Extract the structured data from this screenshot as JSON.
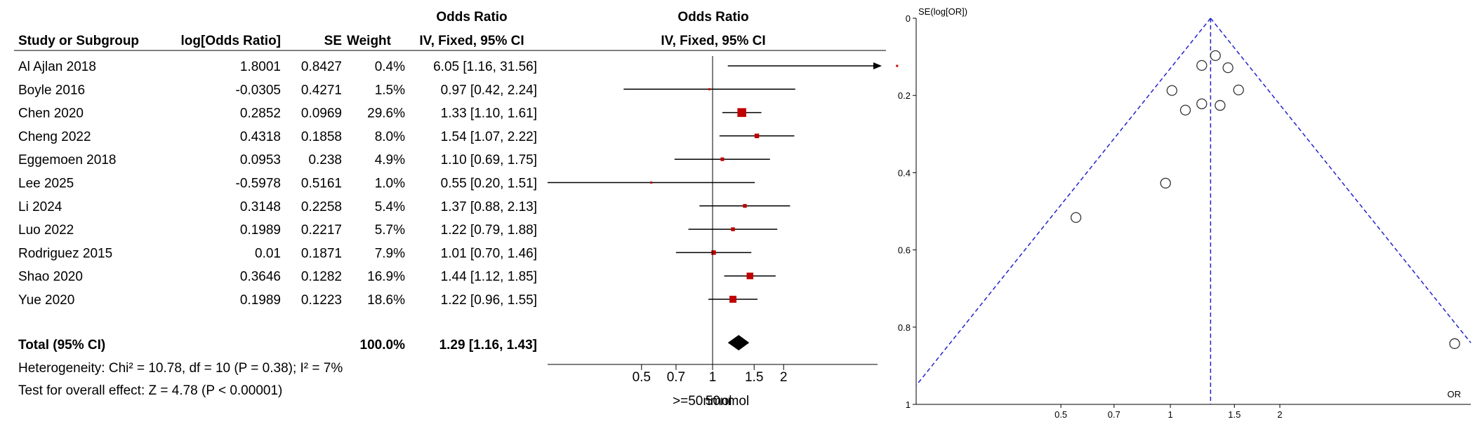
{
  "chart_data": [
    {
      "type": "forest",
      "title": "Odds Ratio",
      "headers": {
        "study": "Study or Subgroup",
        "logor": "log[Odds Ratio]",
        "se": "SE",
        "weight": "Weight",
        "or_title": "Odds Ratio",
        "or_sub": "IV, Fixed, 95% CI",
        "plot_title": "Odds Ratio",
        "plot_sub": "IV, Fixed, 95% CI"
      },
      "studies": [
        {
          "name": "Al Ajlan 2018",
          "logor": "1.8001",
          "se": "0.8427",
          "weight": "0.4%",
          "ci_text": "6.05 [1.16, 31.56]",
          "or": 6.05,
          "lo": 1.16,
          "hi": 31.56,
          "w": 0.4
        },
        {
          "name": "Boyle 2016",
          "logor": "-0.0305",
          "se": "0.4271",
          "weight": "1.5%",
          "ci_text": "0.97 [0.42, 2.24]",
          "or": 0.97,
          "lo": 0.42,
          "hi": 2.24,
          "w": 1.5
        },
        {
          "name": "Chen 2020",
          "logor": "0.2852",
          "se": "0.0969",
          "weight": "29.6%",
          "ci_text": "1.33 [1.10, 1.61]",
          "or": 1.33,
          "lo": 1.1,
          "hi": 1.61,
          "w": 29.6
        },
        {
          "name": "Cheng 2022",
          "logor": "0.4318",
          "se": "0.1858",
          "weight": "8.0%",
          "ci_text": "1.54 [1.07, 2.22]",
          "or": 1.54,
          "lo": 1.07,
          "hi": 2.22,
          "w": 8.0
        },
        {
          "name": "Eggemoen 2018",
          "logor": "0.0953",
          "se": "0.238",
          "weight": "4.9%",
          "ci_text": "1.10 [0.69, 1.75]",
          "or": 1.1,
          "lo": 0.69,
          "hi": 1.75,
          "w": 4.9
        },
        {
          "name": "Lee 2025",
          "logor": "-0.5978",
          "se": "0.5161",
          "weight": "1.0%",
          "ci_text": "0.55 [0.20, 1.51]",
          "or": 0.55,
          "lo": 0.2,
          "hi": 1.51,
          "w": 1.0
        },
        {
          "name": "Li 2024",
          "logor": "0.3148",
          "se": "0.2258",
          "weight": "5.4%",
          "ci_text": "1.37 [0.88, 2.13]",
          "or": 1.37,
          "lo": 0.88,
          "hi": 2.13,
          "w": 5.4
        },
        {
          "name": "Luo 2022",
          "logor": "0.1989",
          "se": "0.2217",
          "weight": "5.7%",
          "ci_text": "1.22 [0.79, 1.88]",
          "or": 1.22,
          "lo": 0.79,
          "hi": 1.88,
          "w": 5.7
        },
        {
          "name": "Rodriguez 2015",
          "logor": "0.01",
          "se": "0.1871",
          "weight": "7.9%",
          "ci_text": "1.01 [0.70, 1.46]",
          "or": 1.01,
          "lo": 0.7,
          "hi": 1.46,
          "w": 7.9
        },
        {
          "name": "Shao 2020",
          "logor": "0.3646",
          "se": "0.1282",
          "weight": "16.9%",
          "ci_text": "1.44 [1.12, 1.85]",
          "or": 1.44,
          "lo": 1.12,
          "hi": 1.85,
          "w": 16.9
        },
        {
          "name": "Yue 2020",
          "logor": "0.1989",
          "se": "0.1223",
          "weight": "18.6%",
          "ci_text": "1.22 [0.96, 1.55]",
          "or": 1.22,
          "lo": 0.96,
          "hi": 1.55,
          "w": 18.6
        }
      ],
      "total": {
        "label": "Total (95% CI)",
        "weight": "100.0%",
        "ci_text": "1.29 [1.16, 1.43]",
        "or": 1.29,
        "lo": 1.16,
        "hi": 1.43
      },
      "heterogeneity": "Heterogeneity: Chi² = 10.78, df = 10 (P = 0.38); I² = 7%",
      "overall_effect": "Test for overall effect: Z = 4.78 (P < 0.00001)",
      "x_scale": "log",
      "x_ticks": [
        {
          "value": 0.5,
          "label": "0.5"
        },
        {
          "value": 0.7,
          "label": "0.7"
        },
        {
          "value": 1,
          "label": "1"
        },
        {
          "value": 1.5,
          "label": "1.5"
        },
        {
          "value": 2,
          "label": "2"
        }
      ],
      "xlim": [
        0.2,
        5
      ],
      "favours_left": ">=50nmol",
      "favours_right": "50nmol",
      "colors": {
        "marker": "#c00000",
        "diamond": "#000000",
        "line": "#000000"
      }
    },
    {
      "type": "funnel",
      "ylabel": "SE(log[OR])",
      "xlabel": "OR",
      "x_scale": "log",
      "xlim": [
        0.2,
        6.7
      ],
      "ylim": [
        0,
        1
      ],
      "y_ticks": [
        {
          "value": 0,
          "label": "0"
        },
        {
          "value": 0.2,
          "label": "0.2"
        },
        {
          "value": 0.4,
          "label": "0.4"
        },
        {
          "value": 0.6,
          "label": "0.6"
        },
        {
          "value": 0.8,
          "label": "0.8"
        },
        {
          "value": 1,
          "label": "1"
        }
      ],
      "x_ticks": [
        {
          "value": 0.5,
          "label": "0.5"
        },
        {
          "value": 0.7,
          "label": "0.7"
        },
        {
          "value": 1,
          "label": "1"
        },
        {
          "value": 1.5,
          "label": "1.5"
        },
        {
          "value": 2,
          "label": "2"
        }
      ],
      "pooled_or": 1.29,
      "points": [
        {
          "or": 6.05,
          "se": 0.8427
        },
        {
          "or": 0.97,
          "se": 0.4271
        },
        {
          "or": 1.33,
          "se": 0.0969
        },
        {
          "or": 1.54,
          "se": 0.1858
        },
        {
          "or": 1.1,
          "se": 0.238
        },
        {
          "or": 0.55,
          "se": 0.5161
        },
        {
          "or": 1.37,
          "se": 0.2258
        },
        {
          "or": 1.22,
          "se": 0.2217
        },
        {
          "or": 1.01,
          "se": 0.1871
        },
        {
          "or": 1.44,
          "se": 0.1282
        },
        {
          "or": 1.22,
          "se": 0.1223
        }
      ],
      "colors": {
        "funnel": "#2222cc",
        "points": "#333333"
      }
    }
  ]
}
